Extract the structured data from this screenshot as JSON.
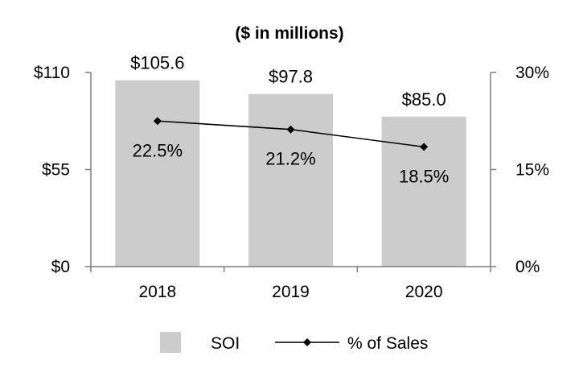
{
  "chart_data": {
    "type": "bar+line",
    "title": "($ in millions)",
    "categories": [
      "2018",
      "2019",
      "2020"
    ],
    "series": [
      {
        "name": "SOI",
        "kind": "bar",
        "axis": "left",
        "values": [
          105.6,
          97.8,
          85.0
        ],
        "labels": [
          "$105.6",
          "$97.8",
          "$85.0"
        ],
        "color": "#cccccc"
      },
      {
        "name": "% of Sales",
        "kind": "line",
        "axis": "right",
        "values": [
          22.5,
          21.2,
          18.5
        ],
        "labels": [
          "22.5%",
          "21.2%",
          "18.5%"
        ],
        "color": "#000000"
      }
    ],
    "left_axis": {
      "ylim": [
        0,
        110
      ],
      "ticks": [
        0,
        55,
        110
      ],
      "tick_labels": [
        "$0",
        "$55",
        "$110"
      ]
    },
    "right_axis": {
      "ylim": [
        0,
        30
      ],
      "ticks": [
        0,
        15,
        30
      ],
      "tick_labels": [
        "0%",
        "15%",
        "30%"
      ]
    },
    "legend": {
      "position": "bottom",
      "items": [
        "SOI",
        "% of Sales"
      ]
    },
    "grid": false
  }
}
